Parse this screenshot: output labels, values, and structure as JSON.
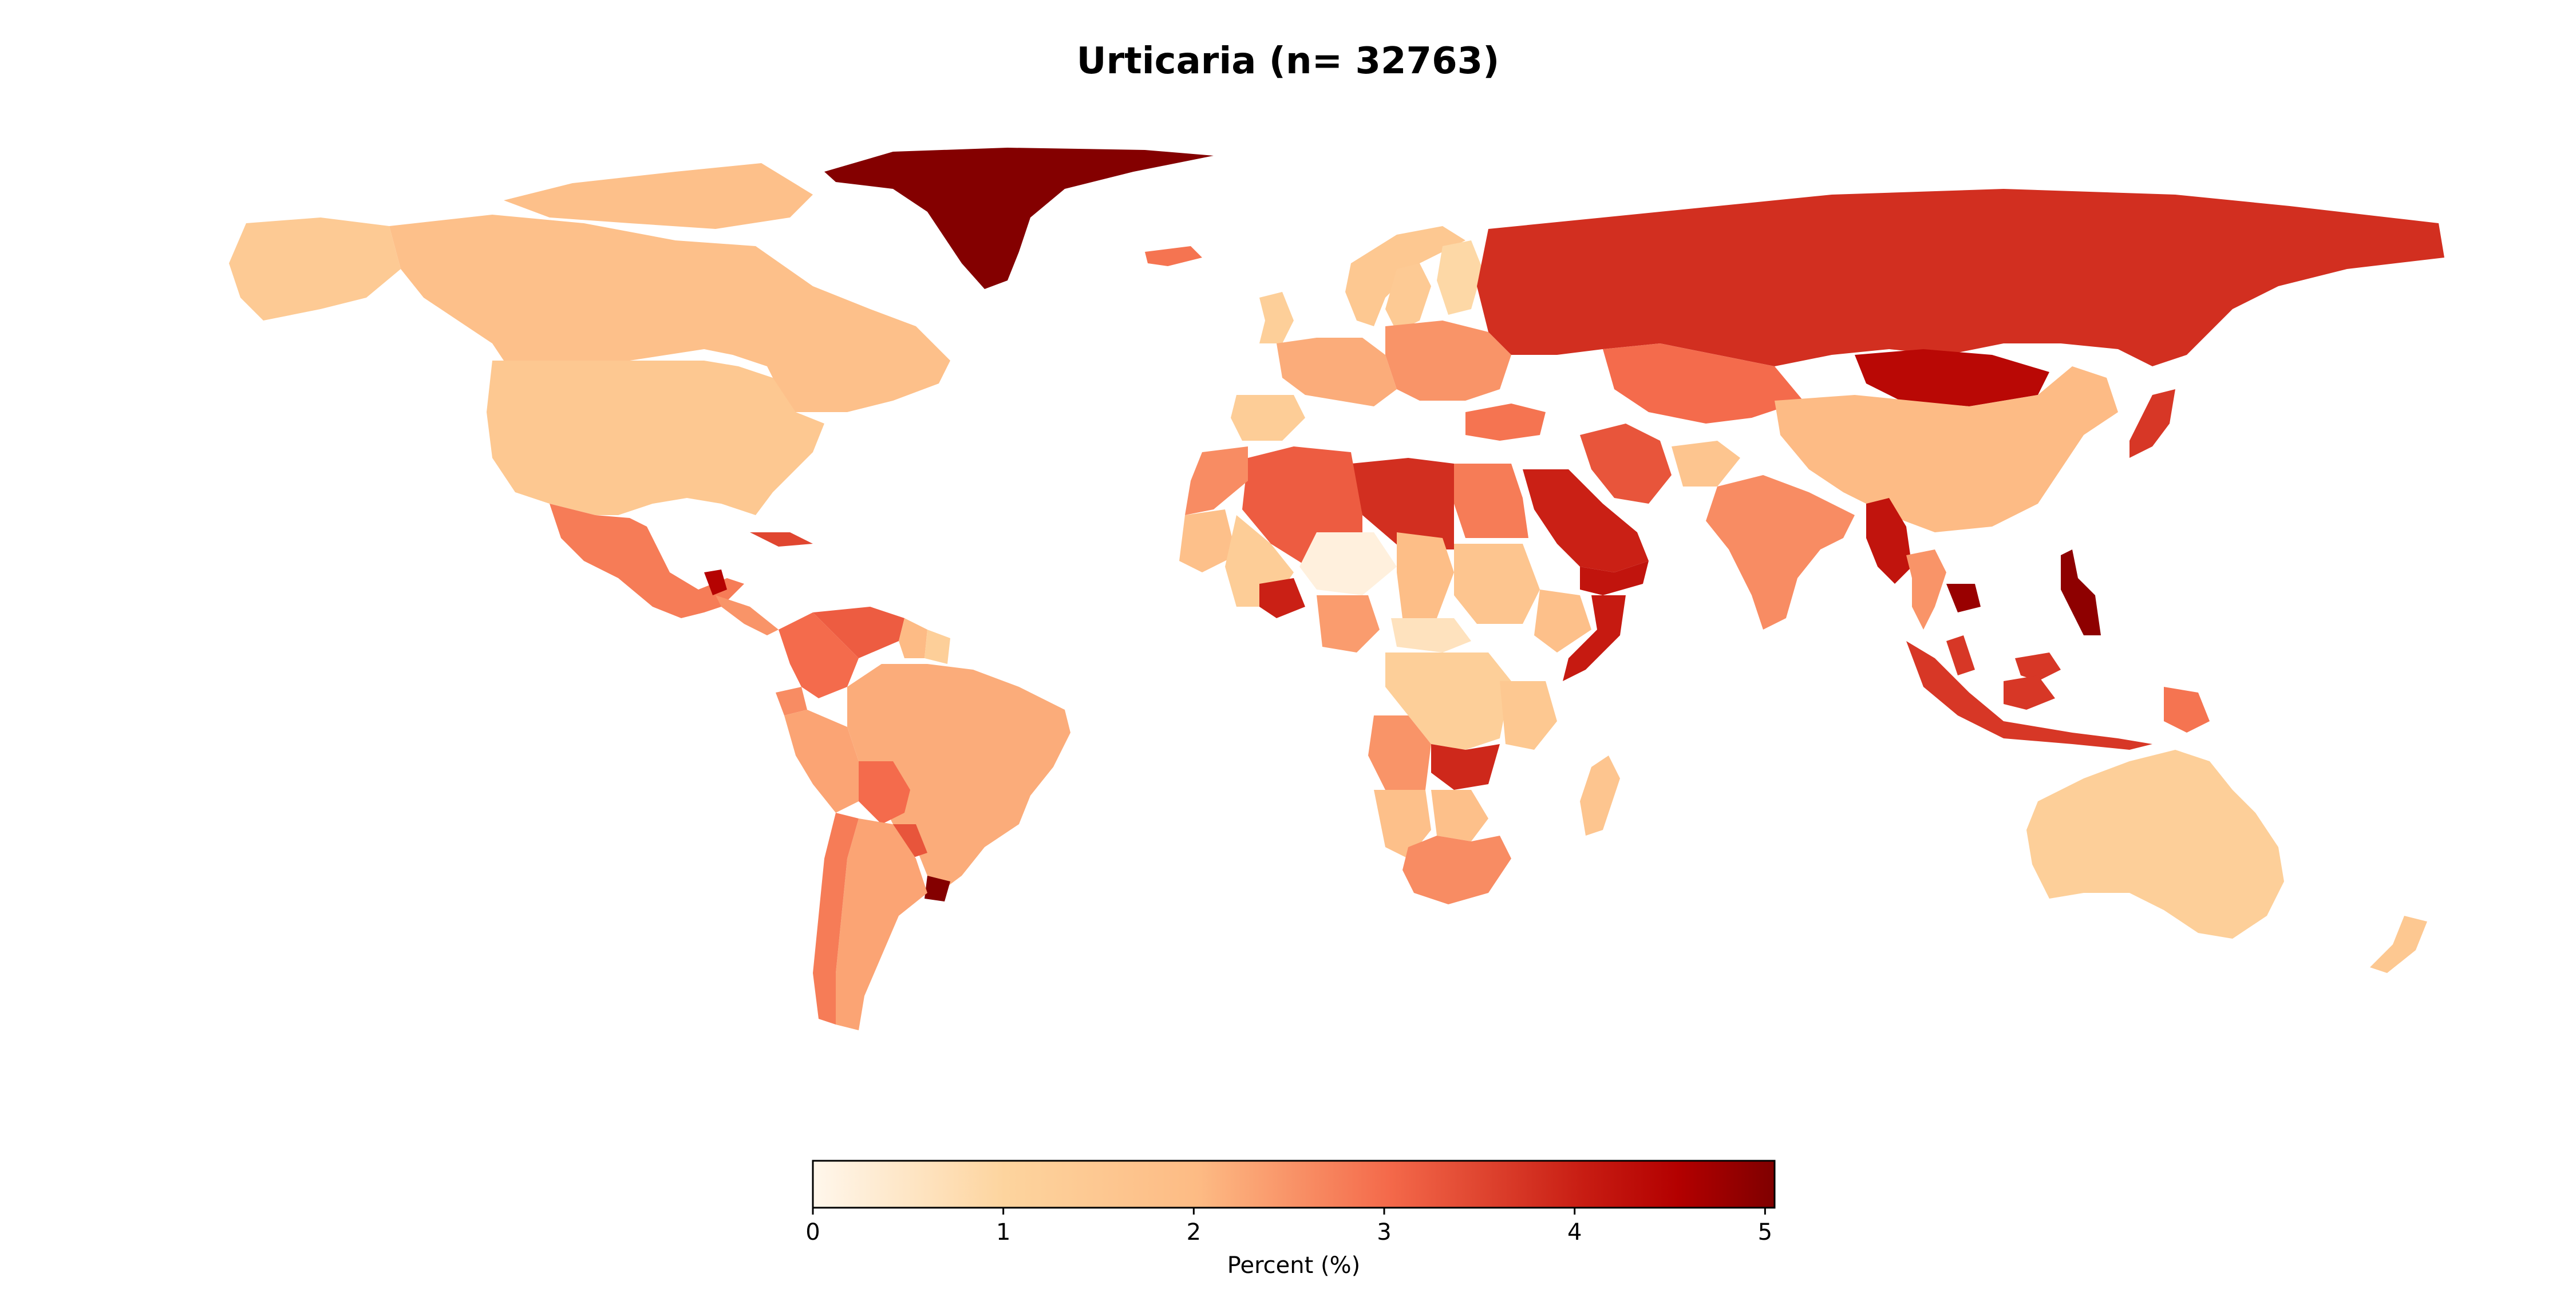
{
  "title": "Urticaria (n= 32763)",
  "chart_data": {
    "type": "choropleth",
    "title": "Urticaria (n= 32763)",
    "value_label": "Percent (%)",
    "scale": {
      "min": 0,
      "max": 5.05,
      "colormap": "OrRd",
      "ticks": [
        0,
        1,
        2,
        3,
        4,
        5
      ]
    },
    "regions": [
      {
        "name": "Greenland",
        "value": 5.0
      },
      {
        "name": "Canada",
        "value": 1.8
      },
      {
        "name": "Alaska",
        "value": 1.4
      },
      {
        "name": "United States",
        "value": 1.5
      },
      {
        "name": "Mexico",
        "value": 2.8
      },
      {
        "name": "Guatemala",
        "value": 4.5
      },
      {
        "name": "Central America",
        "value": 2.5
      },
      {
        "name": "Cuba",
        "value": 3.5
      },
      {
        "name": "Colombia",
        "value": 3.0
      },
      {
        "name": "Venezuela",
        "value": 3.2
      },
      {
        "name": "Guyana",
        "value": 2.0
      },
      {
        "name": "Suriname",
        "value": 1.2
      },
      {
        "name": "Ecuador",
        "value": 2.6
      },
      {
        "name": "Peru",
        "value": 2.3
      },
      {
        "name": "Brazil",
        "value": 2.2
      },
      {
        "name": "Bolivia",
        "value": 3.0
      },
      {
        "name": "Paraguay",
        "value": 3.3
      },
      {
        "name": "Uruguay",
        "value": 5.0
      },
      {
        "name": "Argentina",
        "value": 2.3
      },
      {
        "name": "Chile",
        "value": 2.8
      },
      {
        "name": "Iceland",
        "value": 2.9
      },
      {
        "name": "Norway",
        "value": 1.5
      },
      {
        "name": "Sweden",
        "value": 1.4
      },
      {
        "name": "Finland",
        "value": 0.9
      },
      {
        "name": "United Kingdom",
        "value": 1.2
      },
      {
        "name": "Western Europe",
        "value": 2.2
      },
      {
        "name": "Spain",
        "value": 1.3
      },
      {
        "name": "Eastern Europe",
        "value": 2.5
      },
      {
        "name": "Turkey",
        "value": 2.9
      },
      {
        "name": "Russia",
        "value": 3.8
      },
      {
        "name": "Kazakhstan",
        "value": 3.0
      },
      {
        "name": "Mongolia",
        "value": 4.4
      },
      {
        "name": "China",
        "value": 2.0
      },
      {
        "name": "Japan",
        "value": 3.7
      },
      {
        "name": "Iran",
        "value": 3.3
      },
      {
        "name": "Afghanistan",
        "value": 1.6
      },
      {
        "name": "India",
        "value": 2.6
      },
      {
        "name": "Myanmar",
        "value": 4.2
      },
      {
        "name": "Thailand",
        "value": 2.5
      },
      {
        "name": "Cambodia",
        "value": 4.8
      },
      {
        "name": "Philippines",
        "value": 4.9
      },
      {
        "name": "Malaysia",
        "value": 3.7
      },
      {
        "name": "Indonesia",
        "value": 3.7
      },
      {
        "name": "Papua New Guinea",
        "value": 2.9
      },
      {
        "name": "Australia",
        "value": 1.2
      },
      {
        "name": "New Zealand",
        "value": 1.5
      },
      {
        "name": "Saudi Arabia",
        "value": 4.0
      },
      {
        "name": "Yemen",
        "value": 4.2
      },
      {
        "name": "Egypt",
        "value": 2.8
      },
      {
        "name": "Libya",
        "value": 3.8
      },
      {
        "name": "Algeria",
        "value": 3.2
      },
      {
        "name": "Morocco",
        "value": 2.6
      },
      {
        "name": "Mauritania",
        "value": 1.8
      },
      {
        "name": "Mali",
        "value": 1.3
      },
      {
        "name": "Niger",
        "value": 0.2
      },
      {
        "name": "Chad",
        "value": 1.9
      },
      {
        "name": "Sudan",
        "value": 1.6
      },
      {
        "name": "Ethiopia",
        "value": 1.8
      },
      {
        "name": "Somalia",
        "value": 4.1
      },
      {
        "name": "Nigeria",
        "value": 2.4
      },
      {
        "name": "Ghana",
        "value": 4.0
      },
      {
        "name": "Central African Republic",
        "value": 0.6
      },
      {
        "name": "DR Congo",
        "value": 1.2
      },
      {
        "name": "Tanzania",
        "value": 1.5
      },
      {
        "name": "Angola",
        "value": 2.5
      },
      {
        "name": "Zambia",
        "value": 3.9
      },
      {
        "name": "Namibia",
        "value": 1.8
      },
      {
        "name": "Botswana",
        "value": 1.8
      },
      {
        "name": "South Africa",
        "value": 2.6
      },
      {
        "name": "Madagascar",
        "value": 1.6
      }
    ]
  }
}
